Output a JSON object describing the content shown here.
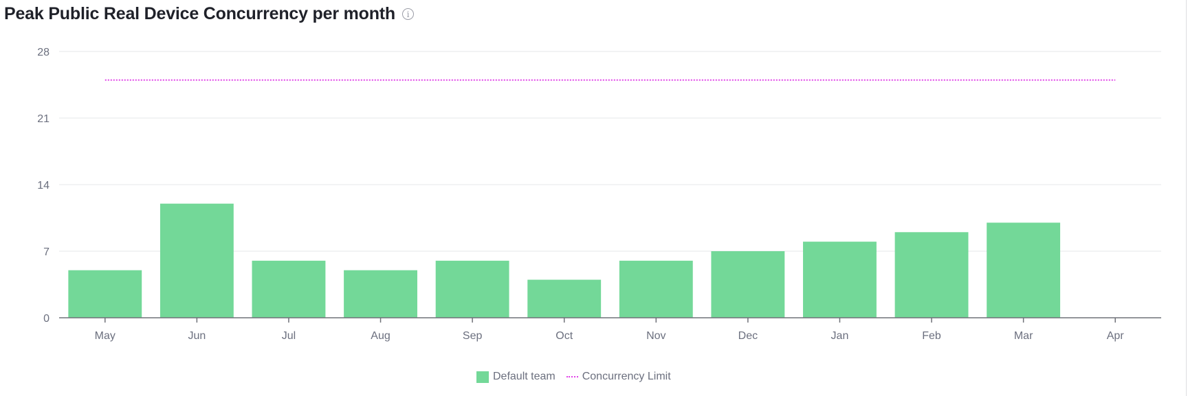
{
  "title": "Peak Public Real Device Concurrency per month",
  "info_icon": "info-circle-icon",
  "chart_data": {
    "type": "bar",
    "title": "Peak Public Real Device Concurrency per month",
    "categories": [
      "May",
      "Jun",
      "Jul",
      "Aug",
      "Sep",
      "Oct",
      "Nov",
      "Dec",
      "Jan",
      "Feb",
      "Mar",
      "Apr"
    ],
    "series": [
      {
        "name": "Default team",
        "type": "bar",
        "color": "#73d898",
        "values": [
          5,
          12,
          6,
          5,
          6,
          4,
          6,
          7,
          8,
          9,
          10,
          0
        ]
      },
      {
        "name": "Concurrency Limit",
        "type": "line",
        "style": "dotted",
        "color": "#e040e8",
        "values": [
          25,
          25,
          25,
          25,
          25,
          25,
          25,
          25,
          25,
          25,
          25,
          25
        ]
      }
    ],
    "yticks": [
      0,
      7,
      14,
      21,
      28
    ],
    "ylim": [
      0,
      28
    ],
    "grid": true,
    "legend": "bottom-center",
    "xlabel": "",
    "ylabel": ""
  }
}
